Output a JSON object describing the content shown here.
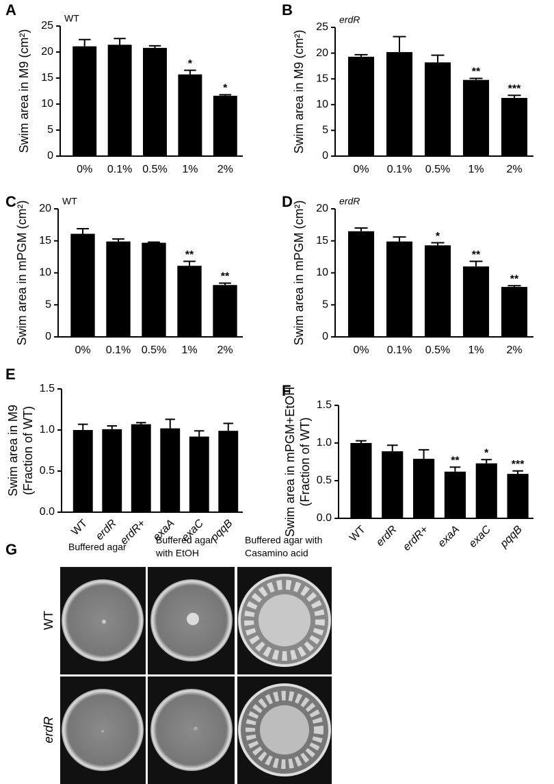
{
  "chart_data": [
    {
      "type": "bar",
      "panel": "A",
      "subtitle": "WT",
      "ylabel": [
        "Swim area in M9 (cm²)"
      ],
      "categories": [
        "0%",
        "0.1%",
        "0.5%",
        "1%",
        "2%"
      ],
      "values": [
        21.1,
        21.4,
        20.8,
        15.7,
        11.6
      ],
      "errors": [
        1.3,
        1.2,
        0.4,
        0.8,
        0.2
      ],
      "significance": [
        null,
        null,
        null,
        "*",
        "*"
      ],
      "color": "#000000",
      "ylim": [
        0,
        25
      ],
      "yticks": [
        0,
        5,
        10,
        15,
        20,
        25
      ]
    },
    {
      "type": "bar",
      "panel": "B",
      "subtitle": "erdR",
      "ylabel": [
        "Swim area in M9 (cm²)"
      ],
      "categories": [
        "0%",
        "0.1%",
        "0.5%",
        "1%",
        "2%"
      ],
      "values": [
        19.3,
        20.2,
        18.2,
        14.8,
        11.3
      ],
      "errors": [
        0.4,
        3.0,
        1.4,
        0.3,
        0.5
      ],
      "significance": [
        null,
        null,
        null,
        "**",
        "***"
      ],
      "color": "#000000",
      "ylim": [
        0,
        25
      ],
      "yticks": [
        0,
        5,
        10,
        15,
        20,
        25
      ]
    },
    {
      "type": "bar",
      "panel": "C",
      "subtitle": "WT",
      "ylabel": [
        "Swim area in mPGM (cm²)"
      ],
      "categories": [
        "0%",
        "0.1%",
        "0.5%",
        "1%",
        "2%"
      ],
      "values": [
        16.1,
        14.9,
        14.7,
        11.1,
        8.1
      ],
      "errors": [
        0.8,
        0.4,
        0.1,
        0.7,
        0.3
      ],
      "significance": [
        null,
        null,
        null,
        "**",
        "**"
      ],
      "color": "#000000",
      "ylim": [
        0,
        20
      ],
      "yticks": [
        0,
        5,
        10,
        15,
        20
      ]
    },
    {
      "type": "bar",
      "panel": "D",
      "subtitle": "erdR",
      "ylabel": [
        "Swim area in mPGM (cm²)"
      ],
      "categories": [
        "0%",
        "0.1%",
        "0.5%",
        "1%",
        "2%"
      ],
      "values": [
        16.5,
        14.9,
        14.3,
        11.0,
        7.8
      ],
      "errors": [
        0.5,
        0.7,
        0.4,
        0.8,
        0.2
      ],
      "significance": [
        null,
        null,
        "*",
        "**",
        "**"
      ],
      "color": "#000000",
      "ylim": [
        0,
        20
      ],
      "yticks": [
        0,
        5,
        10,
        15,
        20
      ]
    },
    {
      "type": "bar",
      "panel": "E",
      "ylabel": [
        "Swim area in M9",
        "(Fraction of WT)"
      ],
      "categories": [
        "WT",
        "erdR",
        "erdR+",
        "exaA",
        "exaC",
        "pqqB"
      ],
      "values": [
        1.0,
        1.01,
        1.07,
        1.02,
        0.92,
        0.99
      ],
      "errors": [
        0.07,
        0.04,
        0.02,
        0.11,
        0.07,
        0.09
      ],
      "color": "#000000",
      "ylim": [
        0,
        1.5
      ],
      "yticks": [
        {
          "value": 0,
          "label": "0.0"
        },
        {
          "value": 0.5,
          "label": "0.5"
        },
        {
          "value": 1,
          "label": "1.0"
        },
        {
          "value": 1.5,
          "label": "1.5"
        }
      ]
    },
    {
      "type": "bar",
      "panel": "F",
      "ylabel": [
        "Swim area in mPGM+EtOH",
        "(Fraction of WT)"
      ],
      "categories": [
        "WT",
        "erdR",
        "erdR+",
        "exaA",
        "exaC",
        "pqqB"
      ],
      "values": [
        1.0,
        0.89,
        0.79,
        0.62,
        0.73,
        0.59
      ],
      "errors": [
        0.03,
        0.08,
        0.12,
        0.06,
        0.05,
        0.04
      ],
      "significance": [
        null,
        null,
        null,
        "**",
        "*",
        "***"
      ],
      "color": "#000000",
      "ylim": [
        0,
        1.5
      ],
      "yticks": [
        {
          "value": 0,
          "label": "0.0"
        },
        {
          "value": 0.5,
          "label": "0.5"
        },
        {
          "value": 1,
          "label": "1.0"
        },
        {
          "value": 1.5,
          "label": "1.5"
        }
      ]
    }
  ],
  "photo_panel": {
    "panel": "G",
    "columns": [
      [
        "Buffered agar"
      ],
      [
        "Buffered agar",
        "with EtOH"
      ],
      [
        "Buffered agar  with",
        "Casamino acid"
      ]
    ],
    "rows": [
      "WT",
      "erdR"
    ]
  }
}
